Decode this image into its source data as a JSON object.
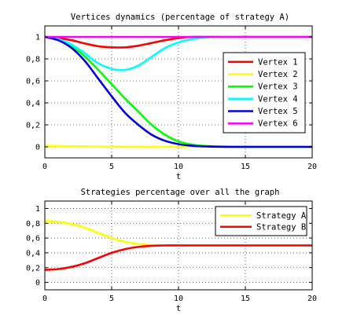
{
  "chart_data": [
    {
      "type": "line",
      "title": "Vertices dynamics (percentage of strategy A)",
      "xlabel": "t",
      "ylabel": "",
      "xlim": [
        0,
        20
      ],
      "ylim": [
        -0.1,
        1.1
      ],
      "xticks": [
        0,
        5,
        10,
        15,
        20
      ],
      "yticks": [
        0,
        0.2,
        0.4,
        0.6,
        0.8,
        1
      ],
      "ytick_labels": [
        "0",
        "0,2",
        "0,4",
        "0,6",
        "0,8",
        "1"
      ],
      "grid": true,
      "legend_position": "right",
      "x": [
        0,
        1,
        2,
        3,
        4,
        5,
        6,
        7,
        8,
        9,
        10,
        11,
        12,
        13,
        14,
        15,
        16,
        17,
        18,
        19,
        20
      ],
      "series": [
        {
          "name": "Vertex 1",
          "color": "#ff0000",
          "values": [
            1.0,
            0.99,
            0.97,
            0.94,
            0.915,
            0.905,
            0.905,
            0.92,
            0.945,
            0.97,
            0.99,
            1.0,
            1.0,
            1.0,
            1.0,
            1.0,
            1.0,
            1.0,
            1.0,
            1.0,
            1.0
          ]
        },
        {
          "name": "Vertex 2",
          "color": "#ffff00",
          "values": [
            0.01,
            0.008,
            0.006,
            0.004,
            0.003,
            0.002,
            0.001,
            0.001,
            0.0,
            0.0,
            0.0,
            0.0,
            0.0,
            0.0,
            0.0,
            0.0,
            0.0,
            0.0,
            0.0,
            0.0,
            0.0
          ]
        },
        {
          "name": "Vertex 3",
          "color": "#00ff00",
          "values": [
            1.0,
            0.98,
            0.92,
            0.82,
            0.7,
            0.57,
            0.44,
            0.32,
            0.2,
            0.11,
            0.05,
            0.02,
            0.008,
            0.003,
            0.001,
            0.0,
            0.0,
            0.0,
            0.0,
            0.0,
            0.0
          ]
        },
        {
          "name": "Vertex 4",
          "color": "#00ffff",
          "values": [
            1.0,
            0.98,
            0.93,
            0.85,
            0.76,
            0.71,
            0.7,
            0.74,
            0.82,
            0.9,
            0.95,
            0.98,
            0.995,
            1.0,
            1.0,
            1.0,
            1.0,
            1.0,
            1.0,
            1.0,
            1.0
          ]
        },
        {
          "name": "Vertex 5",
          "color": "#0000dd",
          "values": [
            1.0,
            0.97,
            0.9,
            0.78,
            0.62,
            0.46,
            0.31,
            0.2,
            0.11,
            0.055,
            0.025,
            0.01,
            0.004,
            0.001,
            0.0,
            0.0,
            0.0,
            0.0,
            0.0,
            0.0,
            0.0
          ]
        },
        {
          "name": "Vertex 6",
          "color": "#ff00ff",
          "values": [
            1.0,
            1.0,
            1.0,
            1.0,
            1.0,
            1.0,
            1.0,
            1.0,
            1.0,
            1.0,
            1.0,
            1.0,
            1.0,
            1.0,
            1.0,
            1.0,
            1.0,
            1.0,
            1.0,
            1.0,
            1.0
          ]
        }
      ]
    },
    {
      "type": "line",
      "title": "Strategies percentage over all the graph",
      "xlabel": "t",
      "ylabel": "",
      "xlim": [
        0,
        20
      ],
      "ylim": [
        -0.1,
        1.1
      ],
      "xticks": [
        0,
        5,
        10,
        15,
        20
      ],
      "yticks": [
        0,
        0.2,
        0.4,
        0.6,
        0.8,
        1
      ],
      "ytick_labels": [
        "0",
        "0,2",
        "0,4",
        "0,6",
        "0,8",
        "1"
      ],
      "grid": true,
      "legend_position": "top-right",
      "x": [
        0,
        1,
        2,
        3,
        4,
        5,
        6,
        7,
        8,
        9,
        10,
        11,
        12,
        13,
        14,
        15,
        16,
        17,
        18,
        19,
        20
      ],
      "series": [
        {
          "name": "Strategy A",
          "color": "#ffff00",
          "values": [
            0.83,
            0.82,
            0.79,
            0.74,
            0.67,
            0.6,
            0.55,
            0.52,
            0.505,
            0.5,
            0.5,
            0.5,
            0.5,
            0.5,
            0.5,
            0.5,
            0.5,
            0.5,
            0.5,
            0.5,
            0.5
          ]
        },
        {
          "name": "Strategy B",
          "color": "#ff0000",
          "values": [
            0.17,
            0.18,
            0.21,
            0.26,
            0.33,
            0.4,
            0.45,
            0.48,
            0.495,
            0.5,
            0.5,
            0.5,
            0.5,
            0.5,
            0.5,
            0.5,
            0.5,
            0.5,
            0.5,
            0.5,
            0.5
          ]
        }
      ]
    }
  ]
}
